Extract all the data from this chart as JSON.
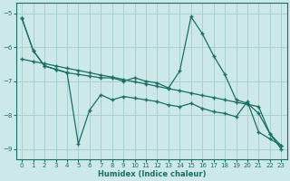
{
  "xlabel": "Humidex (Indice chaleur)",
  "xlim": [
    -0.5,
    23.5
  ],
  "ylim": [
    -9.3,
    -4.7
  ],
  "yticks": [
    -9,
    -8,
    -7,
    -6,
    -5
  ],
  "xticks": [
    0,
    1,
    2,
    3,
    4,
    5,
    6,
    7,
    8,
    9,
    10,
    11,
    12,
    13,
    14,
    15,
    16,
    17,
    18,
    19,
    20,
    21,
    22,
    23
  ],
  "bg_color": "#cce8e8",
  "grid_color": "#a8d0d0",
  "line_color": "#1a6e64",
  "line1_x": [
    0,
    1,
    2,
    3,
    4,
    5,
    6,
    7,
    8,
    9,
    10,
    11,
    12,
    13,
    14,
    15,
    16,
    17,
    18,
    19,
    20,
    21,
    22,
    23
  ],
  "line1_y": [
    -5.15,
    -6.1,
    -6.55,
    -6.65,
    -6.75,
    -8.85,
    -7.85,
    -7.4,
    -7.55,
    -7.45,
    -7.5,
    -7.55,
    -7.6,
    -7.7,
    -7.75,
    -7.65,
    -7.8,
    -7.9,
    -7.95,
    -8.05,
    -7.6,
    -8.5,
    -8.7,
    -8.9
  ],
  "line2_x": [
    0,
    1,
    2,
    3,
    4,
    5,
    6,
    7,
    8,
    9,
    10,
    11,
    12,
    13,
    14,
    15,
    16,
    17,
    18,
    19,
    20,
    21,
    22,
    23
  ],
  "line2_y": [
    -5.15,
    -6.1,
    -6.55,
    -6.65,
    -6.75,
    -6.8,
    -6.85,
    -6.9,
    -6.9,
    -7.0,
    -6.9,
    -7.0,
    -7.05,
    -7.2,
    -6.7,
    -5.1,
    -5.6,
    -6.25,
    -6.8,
    -7.55,
    -7.65,
    -7.95,
    -8.55,
    -8.9
  ],
  "line3_x": [
    0,
    1,
    2,
    3,
    4,
    5,
    6,
    7,
    8,
    9,
    10,
    11,
    12,
    13,
    14,
    15,
    16,
    17,
    18,
    19,
    20,
    21,
    22,
    23
  ],
  "line3_y": [
    -6.35,
    -6.42,
    -6.48,
    -6.55,
    -6.62,
    -6.68,
    -6.75,
    -6.82,
    -6.88,
    -6.95,
    -7.02,
    -7.08,
    -7.15,
    -7.22,
    -7.28,
    -7.35,
    -7.42,
    -7.48,
    -7.55,
    -7.62,
    -7.68,
    -7.75,
    -8.55,
    -9.0
  ]
}
